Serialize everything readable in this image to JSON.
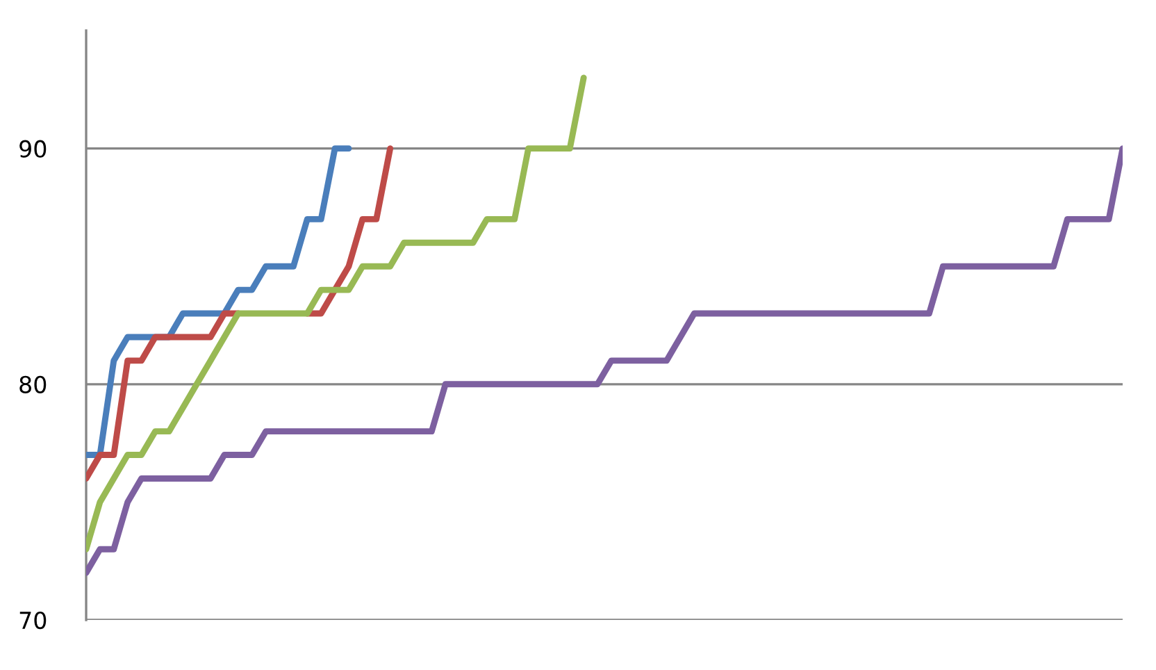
{
  "chart_data": {
    "type": "line",
    "categories": [
      null,
      null,
      null,
      null,
      null,
      null,
      null,
      null,
      null,
      null,
      null,
      null,
      null,
      null,
      null,
      null,
      null,
      null,
      null,
      null,
      null,
      null,
      null,
      null,
      null,
      null,
      null,
      null,
      null,
      null,
      null,
      null,
      null,
      null,
      null,
      null,
      null,
      null,
      null,
      null,
      null,
      null,
      null,
      null,
      null,
      null,
      null,
      null,
      null,
      null,
      null,
      null,
      null,
      null,
      null,
      null,
      null,
      null,
      null,
      null,
      null,
      null,
      null,
      null,
      null,
      null,
      null,
      null,
      null,
      null,
      null,
      null,
      null,
      null,
      null,
      null
    ],
    "series": [
      {
        "color": "#4a7ebb",
        "values": [
          77,
          77,
          81,
          82,
          82,
          82,
          82,
          83,
          83,
          83,
          83,
          84,
          84,
          85,
          85,
          85,
          87,
          87,
          90,
          90,
          null,
          null,
          null,
          null,
          null,
          null,
          null,
          null,
          null,
          null,
          null,
          null,
          null,
          null,
          null,
          null,
          null,
          null,
          null,
          null,
          null,
          null,
          null,
          null,
          null,
          null,
          null,
          null,
          null,
          null,
          null,
          null,
          null,
          null,
          null,
          null,
          null,
          null,
          null,
          null,
          null,
          null,
          null,
          null,
          null,
          null,
          null,
          null,
          null,
          null,
          null,
          null,
          null,
          null,
          null,
          null
        ]
      },
      {
        "color": "#be4b48",
        "values": [
          76,
          77,
          77,
          81,
          81,
          82,
          82,
          82,
          82,
          82,
          83,
          83,
          null,
          null,
          null,
          null,
          83,
          83,
          84,
          85,
          87,
          87,
          90,
          null,
          null,
          null,
          null,
          null,
          null,
          null,
          null,
          null,
          null,
          null,
          null,
          null,
          null,
          null,
          null,
          null,
          null,
          null,
          null,
          null,
          null,
          null,
          null,
          null,
          null,
          null,
          null,
          null,
          null,
          null,
          null,
          null,
          null,
          null,
          null,
          null,
          null,
          null,
          null,
          null,
          null,
          null,
          null,
          null,
          null,
          null,
          null,
          null,
          null,
          null,
          null,
          null
        ]
      },
      {
        "color": "#98b954",
        "values": [
          73,
          75,
          76,
          77,
          77,
          78,
          78,
          79,
          80,
          81,
          82,
          83,
          83,
          83,
          83,
          83,
          83,
          84,
          84,
          84,
          85,
          85,
          85,
          86,
          86,
          86,
          86,
          86,
          86,
          87,
          87,
          87,
          90,
          90,
          90,
          90,
          93,
          null,
          null,
          null,
          null,
          null,
          null,
          null,
          null,
          null,
          null,
          null,
          null,
          null,
          null,
          null,
          null,
          null,
          null,
          null,
          null,
          null,
          null,
          null,
          null,
          null,
          null,
          null,
          null,
          null,
          null,
          null,
          null,
          null,
          null,
          null,
          null,
          null,
          null,
          null
        ]
      },
      {
        "color": "#7d60a0",
        "values": [
          72,
          73,
          73,
          75,
          76,
          76,
          76,
          76,
          76,
          76,
          77,
          77,
          77,
          78,
          78,
          78,
          78,
          78,
          78,
          78,
          78,
          78,
          78,
          78,
          78,
          78,
          80,
          80,
          80,
          80,
          80,
          80,
          80,
          80,
          80,
          80,
          80,
          80,
          81,
          81,
          81,
          81,
          81,
          82,
          83,
          83,
          83,
          83,
          83,
          83,
          83,
          83,
          83,
          83,
          83,
          83,
          83,
          83,
          83,
          83,
          83,
          83,
          85,
          85,
          85,
          85,
          85,
          85,
          85,
          85,
          85,
          87,
          87,
          87,
          87,
          90
        ]
      }
    ],
    "ylim": [
      70,
      95
    ],
    "yticks": [
      70,
      80,
      90
    ],
    "grid": "y",
    "line_style": "solid",
    "marker": "none",
    "tick_labels": "y"
  }
}
